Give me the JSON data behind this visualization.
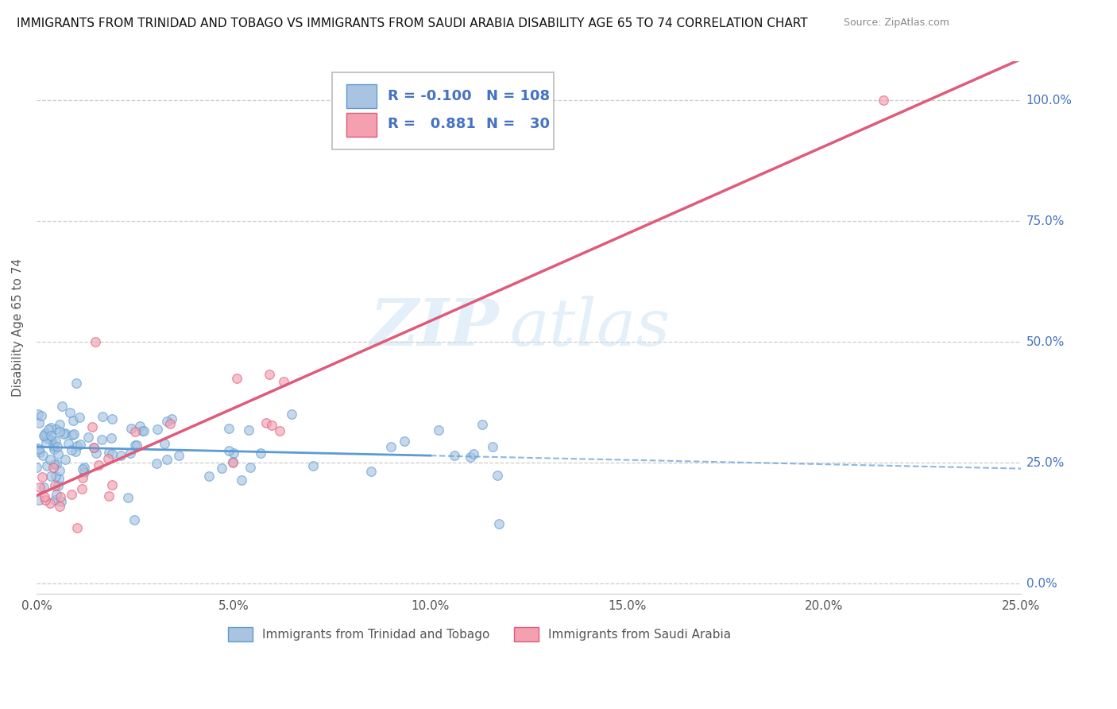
{
  "title": "IMMIGRANTS FROM TRINIDAD AND TOBAGO VS IMMIGRANTS FROM SAUDI ARABIA DISABILITY AGE 65 TO 74 CORRELATION CHART",
  "source": "Source: ZipAtlas.com",
  "ylabel": "Disability Age 65 to 74",
  "xlim": [
    0.0,
    0.25
  ],
  "ylim": [
    -0.02,
    1.08
  ],
  "xticks": [
    0.0,
    0.05,
    0.1,
    0.15,
    0.2,
    0.25
  ],
  "xticklabels": [
    "0.0%",
    "5.0%",
    "10.0%",
    "15.0%",
    "20.0%",
    "25.0%"
  ],
  "yticks": [
    0.0,
    0.25,
    0.5,
    0.75,
    1.0
  ],
  "yticklabels": [
    "0.0%",
    "25.0%",
    "50.0%",
    "75.0%",
    "100.0%"
  ],
  "legend_r1": "-0.100",
  "legend_n1": "108",
  "legend_r2": "0.881",
  "legend_n2": "30",
  "color_tt": "#a8c4e0",
  "color_sa": "#f4a0b0",
  "trend_color_tt": "#5b9bd5",
  "trend_color_sa": "#e05a7a",
  "watermark_zip": "ZIP",
  "watermark_atlas": "atlas",
  "label_tt": "Immigrants from Trinidad and Tobago",
  "label_sa": "Immigrants from Saudi Arabia",
  "background_color": "#ffffff",
  "grid_color": "#cccccc",
  "title_fontsize": 11,
  "axis_label_fontsize": 11,
  "tick_fontsize": 11,
  "legend_color": "#4472c4"
}
